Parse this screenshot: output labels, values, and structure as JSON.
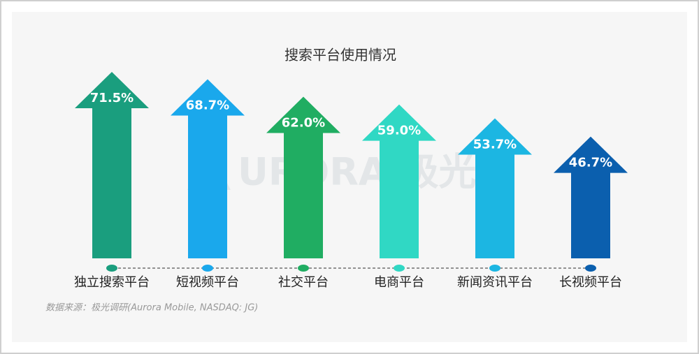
{
  "chart_data": {
    "type": "arrow-bar",
    "title": "搜索平台使用情况",
    "categories": [
      "独立搜索平台",
      "短视频平台",
      "社交平台",
      "电商平台",
      "新闻资讯平台",
      "长视频平台"
    ],
    "values": [
      71.5,
      68.7,
      62.0,
      59.0,
      53.7,
      46.7
    ],
    "value_labels": [
      "71.5%",
      "68.7%",
      "62.0%",
      "59.0%",
      "53.7%",
      "46.7%"
    ],
    "colors": [
      "#1a9e7e",
      "#1aa8ec",
      "#20ad62",
      "#30d8c4",
      "#1cb6e2",
      "#0b5fae"
    ],
    "watermark": "URORA 极光",
    "source": "数据来源：极光调研(Aurora Mobile, NASDAQ: JG)"
  }
}
